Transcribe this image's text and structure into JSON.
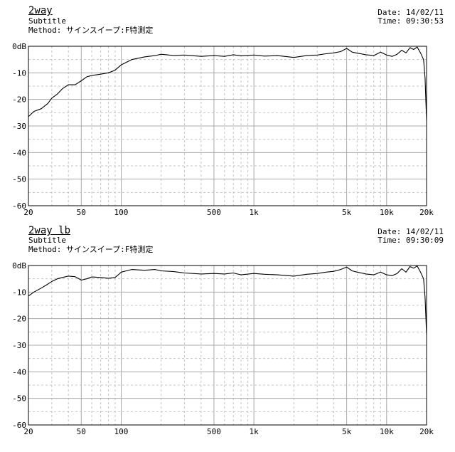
{
  "chart_data": [
    {
      "type": "line",
      "title": "2way",
      "subtitle": "Subtitle",
      "method": "Method: サインスイープ:F特測定",
      "date": "Date: 14/02/11",
      "time": "Time: 09:30:53",
      "x_scale": "log",
      "xlim": [
        20,
        20000
      ],
      "ylim": [
        -60,
        0
      ],
      "x_ticks": [
        {
          "v": 20,
          "t": "20"
        },
        {
          "v": 50,
          "t": "50"
        },
        {
          "v": 100,
          "t": "100"
        },
        {
          "v": 500,
          "t": "500"
        },
        {
          "v": 1000,
          "t": "1k"
        },
        {
          "v": 5000,
          "t": "5k"
        },
        {
          "v": 10000,
          "t": "10k"
        },
        {
          "v": 20000,
          "t": "20k"
        }
      ],
      "y_ticks": [
        {
          "v": 0,
          "t": "0dB"
        },
        {
          "v": -10,
          "t": "-10"
        },
        {
          "v": -20,
          "t": "-20"
        },
        {
          "v": -30,
          "t": "-30"
        },
        {
          "v": -40,
          "t": "-40"
        },
        {
          "v": -50,
          "t": "-50"
        },
        {
          "v": -60,
          "t": "-60"
        }
      ],
      "grid": true,
      "series": [
        {
          "x": [
            20,
            22,
            25,
            28,
            30,
            33,
            36,
            40,
            45,
            50,
            55,
            60,
            70,
            80,
            90,
            100,
            120,
            150,
            180,
            200,
            250,
            300,
            400,
            500,
            600,
            700,
            800,
            1000,
            1200,
            1500,
            2000,
            2500,
            3000,
            3500,
            4000,
            4500,
            5000,
            5500,
            6000,
            7000,
            8000,
            9000,
            10000,
            11000,
            12000,
            13000,
            14000,
            15000,
            16000,
            17000,
            18000,
            19000,
            19500,
            20000
          ],
          "y": [
            -26.5,
            -24.5,
            -23.5,
            -21.5,
            -19.5,
            -18,
            -16,
            -14.5,
            -14.5,
            -13,
            -11.5,
            -11,
            -10.5,
            -10,
            -9,
            -7,
            -5,
            -4,
            -3.5,
            -3,
            -3.5,
            -3.3,
            -3.8,
            -3.5,
            -3.8,
            -3.2,
            -3.6,
            -3.3,
            -3.7,
            -3.5,
            -4.2,
            -3.5,
            -3.3,
            -2.8,
            -2.5,
            -2,
            -0.8,
            -2.2,
            -2.6,
            -3.2,
            -3.5,
            -2.2,
            -3.3,
            -3.8,
            -3,
            -1.5,
            -2.5,
            -0.5,
            -1.2,
            -0.3,
            -2.5,
            -5,
            -12,
            -28
          ]
        }
      ]
    },
    {
      "type": "line",
      "title": "2way lb",
      "subtitle": "Subtitle",
      "method": "Method: サインスイープ:F特測定",
      "date": "Date: 14/02/11",
      "time": "Time: 09:30:09",
      "x_scale": "log",
      "xlim": [
        20,
        20000
      ],
      "ylim": [
        -60,
        0
      ],
      "x_ticks": [
        {
          "v": 20,
          "t": "20"
        },
        {
          "v": 50,
          "t": "50"
        },
        {
          "v": 100,
          "t": "100"
        },
        {
          "v": 500,
          "t": "500"
        },
        {
          "v": 1000,
          "t": "1k"
        },
        {
          "v": 5000,
          "t": "5k"
        },
        {
          "v": 10000,
          "t": "10k"
        },
        {
          "v": 20000,
          "t": "20k"
        }
      ],
      "y_ticks": [
        {
          "v": 0,
          "t": "0dB"
        },
        {
          "v": -10,
          "t": "-10"
        },
        {
          "v": -20,
          "t": "-20"
        },
        {
          "v": -30,
          "t": "-30"
        },
        {
          "v": -40,
          "t": "-40"
        },
        {
          "v": -50,
          "t": "-50"
        },
        {
          "v": -60,
          "t": "-60"
        }
      ],
      "grid": true,
      "series": [
        {
          "x": [
            20,
            22,
            25,
            28,
            30,
            33,
            36,
            40,
            45,
            50,
            55,
            60,
            70,
            80,
            90,
            95,
            100,
            120,
            150,
            180,
            200,
            250,
            300,
            400,
            500,
            600,
            700,
            800,
            1000,
            1200,
            1500,
            2000,
            2500,
            3000,
            3500,
            4000,
            4500,
            5000,
            5500,
            6000,
            7000,
            8000,
            9000,
            10000,
            11000,
            12000,
            13000,
            14000,
            15000,
            16000,
            17000,
            18000,
            19000,
            19500,
            20000
          ],
          "y": [
            -11.5,
            -10,
            -8.5,
            -7,
            -6,
            -5,
            -4.5,
            -4,
            -4.2,
            -5.5,
            -5,
            -4.3,
            -4.5,
            -4.8,
            -4.5,
            -3.5,
            -2.5,
            -1.5,
            -1.8,
            -1.5,
            -2,
            -2.3,
            -2.8,
            -3.2,
            -3,
            -3.2,
            -2.8,
            -3.5,
            -3,
            -3.3,
            -3.5,
            -4,
            -3.3,
            -3,
            -2.5,
            -2.2,
            -1.5,
            -0.6,
            -2,
            -2.5,
            -3.2,
            -3.5,
            -2.5,
            -3.5,
            -3.8,
            -3,
            -1.2,
            -2.5,
            -0.4,
            -1,
            -0.2,
            -2.5,
            -5,
            -12,
            -26
          ]
        }
      ]
    }
  ]
}
